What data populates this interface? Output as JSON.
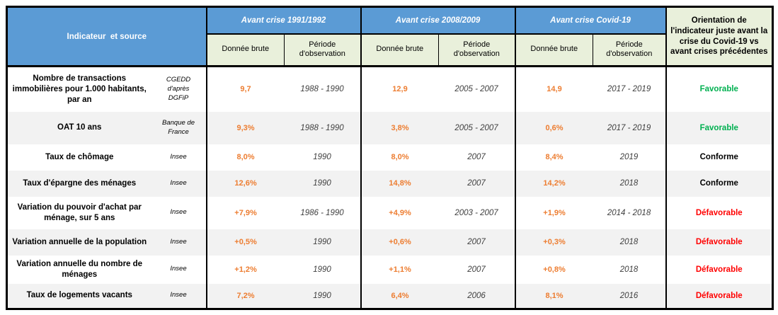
{
  "table": {
    "header": {
      "indicator_source_label": "Indicateur  et source",
      "groups": [
        {
          "label": "Avant crise 1991/1992"
        },
        {
          "label": "Avant crise 2008/2009"
        },
        {
          "label": "Avant crise Covid-19"
        }
      ],
      "sub_headers": {
        "value": "Donnée brute",
        "period": "Période d'observation"
      },
      "orientation_label": "Orientation de l'indicateur juste avant la crise du Covid-19 vs avant crises précédentes"
    },
    "rows": [
      {
        "indicator": "Nombre de transactions immobilières pour 1.000 habitants, par an",
        "source": "CGEDD d'après DGFiP",
        "crisis_1991": {
          "value": "9,7",
          "period": "1988 - 1990"
        },
        "crisis_2008": {
          "value": "12,9",
          "period": "2005 - 2007"
        },
        "crisis_covid": {
          "value": "14,9",
          "period": "2017 - 2019"
        },
        "orientation": "Favorable",
        "orientation_status": "favorable"
      },
      {
        "indicator": "OAT 10 ans",
        "source": "Banque de France",
        "crisis_1991": {
          "value": "9,3%",
          "period": "1988 - 1990"
        },
        "crisis_2008": {
          "value": "3,8%",
          "period": "2005 - 2007"
        },
        "crisis_covid": {
          "value": "0,6%",
          "period": "2017 - 2019"
        },
        "orientation": "Favorable",
        "orientation_status": "favorable"
      },
      {
        "indicator": "Taux de chômage",
        "source": "Insee",
        "crisis_1991": {
          "value": "8,0%",
          "period": "1990"
        },
        "crisis_2008": {
          "value": "8,0%",
          "period": "2007"
        },
        "crisis_covid": {
          "value": "8,4%",
          "period": "2019"
        },
        "orientation": "Conforme",
        "orientation_status": "conforme"
      },
      {
        "indicator": "Taux d'épargne des ménages",
        "source": "Insee",
        "crisis_1991": {
          "value": "12,6%",
          "period": "1990"
        },
        "crisis_2008": {
          "value": "14,8%",
          "period": "2007"
        },
        "crisis_covid": {
          "value": "14,2%",
          "period": "2018"
        },
        "orientation": "Conforme",
        "orientation_status": "conforme"
      },
      {
        "indicator": "Variation du pouvoir d'achat par ménage, sur 5 ans",
        "source": "Insee",
        "crisis_1991": {
          "value": "+7,9%",
          "period": "1986 - 1990"
        },
        "crisis_2008": {
          "value": "+4,9%",
          "period": "2003 - 2007"
        },
        "crisis_covid": {
          "value": "+1,9%",
          "period": "2014 - 2018"
        },
        "orientation": "Défavorable",
        "orientation_status": "defavorable"
      },
      {
        "indicator": "Variation annuelle de la population",
        "source": "Insee",
        "crisis_1991": {
          "value": "+0,5%",
          "period": "1990"
        },
        "crisis_2008": {
          "value": "+0,6%",
          "period": "2007"
        },
        "crisis_covid": {
          "value": "+0,3%",
          "period": "2018"
        },
        "orientation": "Défavorable",
        "orientation_status": "defavorable"
      },
      {
        "indicator": "Variation annuelle du nombre de ménages",
        "source": "Insee",
        "crisis_1991": {
          "value": "+1,2%",
          "period": "1990"
        },
        "crisis_2008": {
          "value": "+1,1%",
          "period": "2007"
        },
        "crisis_covid": {
          "value": "+0,8%",
          "period": "2018"
        },
        "orientation": "Défavorable",
        "orientation_status": "defavorable"
      },
      {
        "indicator": "Taux de logements vacants",
        "source": "Insee",
        "crisis_1991": {
          "value": "7,2%",
          "period": "1990"
        },
        "crisis_2008": {
          "value": "6,4%",
          "period": "2006"
        },
        "crisis_covid": {
          "value": "8,1%",
          "period": "2016"
        },
        "orientation": "Défavorable",
        "orientation_status": "defavorable"
      }
    ]
  },
  "colors": {
    "header_blue": "#5B9BD5",
    "header_green_bg": "#E9F0DB",
    "value_orange": "#ED7D31",
    "favorable_green": "#00B050",
    "conforme_black": "#000000",
    "defavorable_red": "#FF0000",
    "alt_row_gray": "#F2F2F2",
    "border_black": "#000000"
  }
}
